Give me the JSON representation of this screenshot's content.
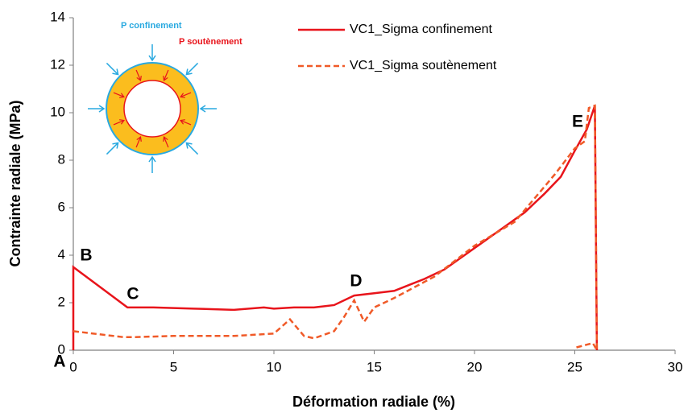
{
  "chart_data": {
    "type": "line",
    "xlabel": "Déformation radiale (%)",
    "ylabel": "Contrainte radiale (MPa)",
    "xlim": [
      0,
      30
    ],
    "xticks": [
      0,
      5,
      10,
      15,
      20,
      25,
      30
    ],
    "ylim": [
      0,
      14
    ],
    "yticks": [
      0,
      2,
      4,
      6,
      8,
      10,
      12,
      14
    ],
    "series": [
      {
        "name": "VC1_Sigma confinement",
        "color": "#e8141b",
        "line_style": "solid",
        "x": [
          0,
          0,
          2.7,
          4,
          6,
          8,
          9.5,
          10,
          11,
          12,
          13,
          14,
          15,
          16,
          17.5,
          18.5,
          19.5,
          20.5,
          21.5,
          22.5,
          23.5,
          24.3,
          25,
          25.6,
          26,
          26.1
        ],
        "values": [
          0,
          3.5,
          1.8,
          1.8,
          1.75,
          1.7,
          1.8,
          1.75,
          1.8,
          1.8,
          1.9,
          2.3,
          2.4,
          2.5,
          3,
          3.4,
          4,
          4.6,
          5.2,
          5.8,
          6.6,
          7.3,
          8.4,
          9.3,
          10.3,
          0
        ]
      },
      {
        "name": "VC1_Sigma soutènement",
        "color": "#f05a28",
        "line_style": "dashed",
        "x": [
          0,
          1,
          2.5,
          3,
          5,
          8,
          10,
          10.8,
          11.5,
          12,
          13,
          13.5,
          14,
          14.5,
          15,
          16,
          18,
          20,
          22,
          24,
          25,
          25.5,
          25.7,
          26,
          26.1,
          25.9,
          25
        ],
        "values": [
          0.8,
          0.7,
          0.55,
          0.55,
          0.6,
          0.6,
          0.7,
          1.3,
          0.6,
          0.5,
          0.8,
          1.4,
          2.1,
          1.2,
          1.8,
          2.2,
          3.1,
          4.4,
          5.4,
          7.4,
          8.5,
          8.8,
          10.2,
          10.3,
          0,
          0.3,
          0.1
        ]
      }
    ],
    "annotations": [
      "A",
      "B",
      "C",
      "D",
      "E"
    ],
    "inset_labels": [
      "P confinement",
      "P soutènement"
    ]
  }
}
